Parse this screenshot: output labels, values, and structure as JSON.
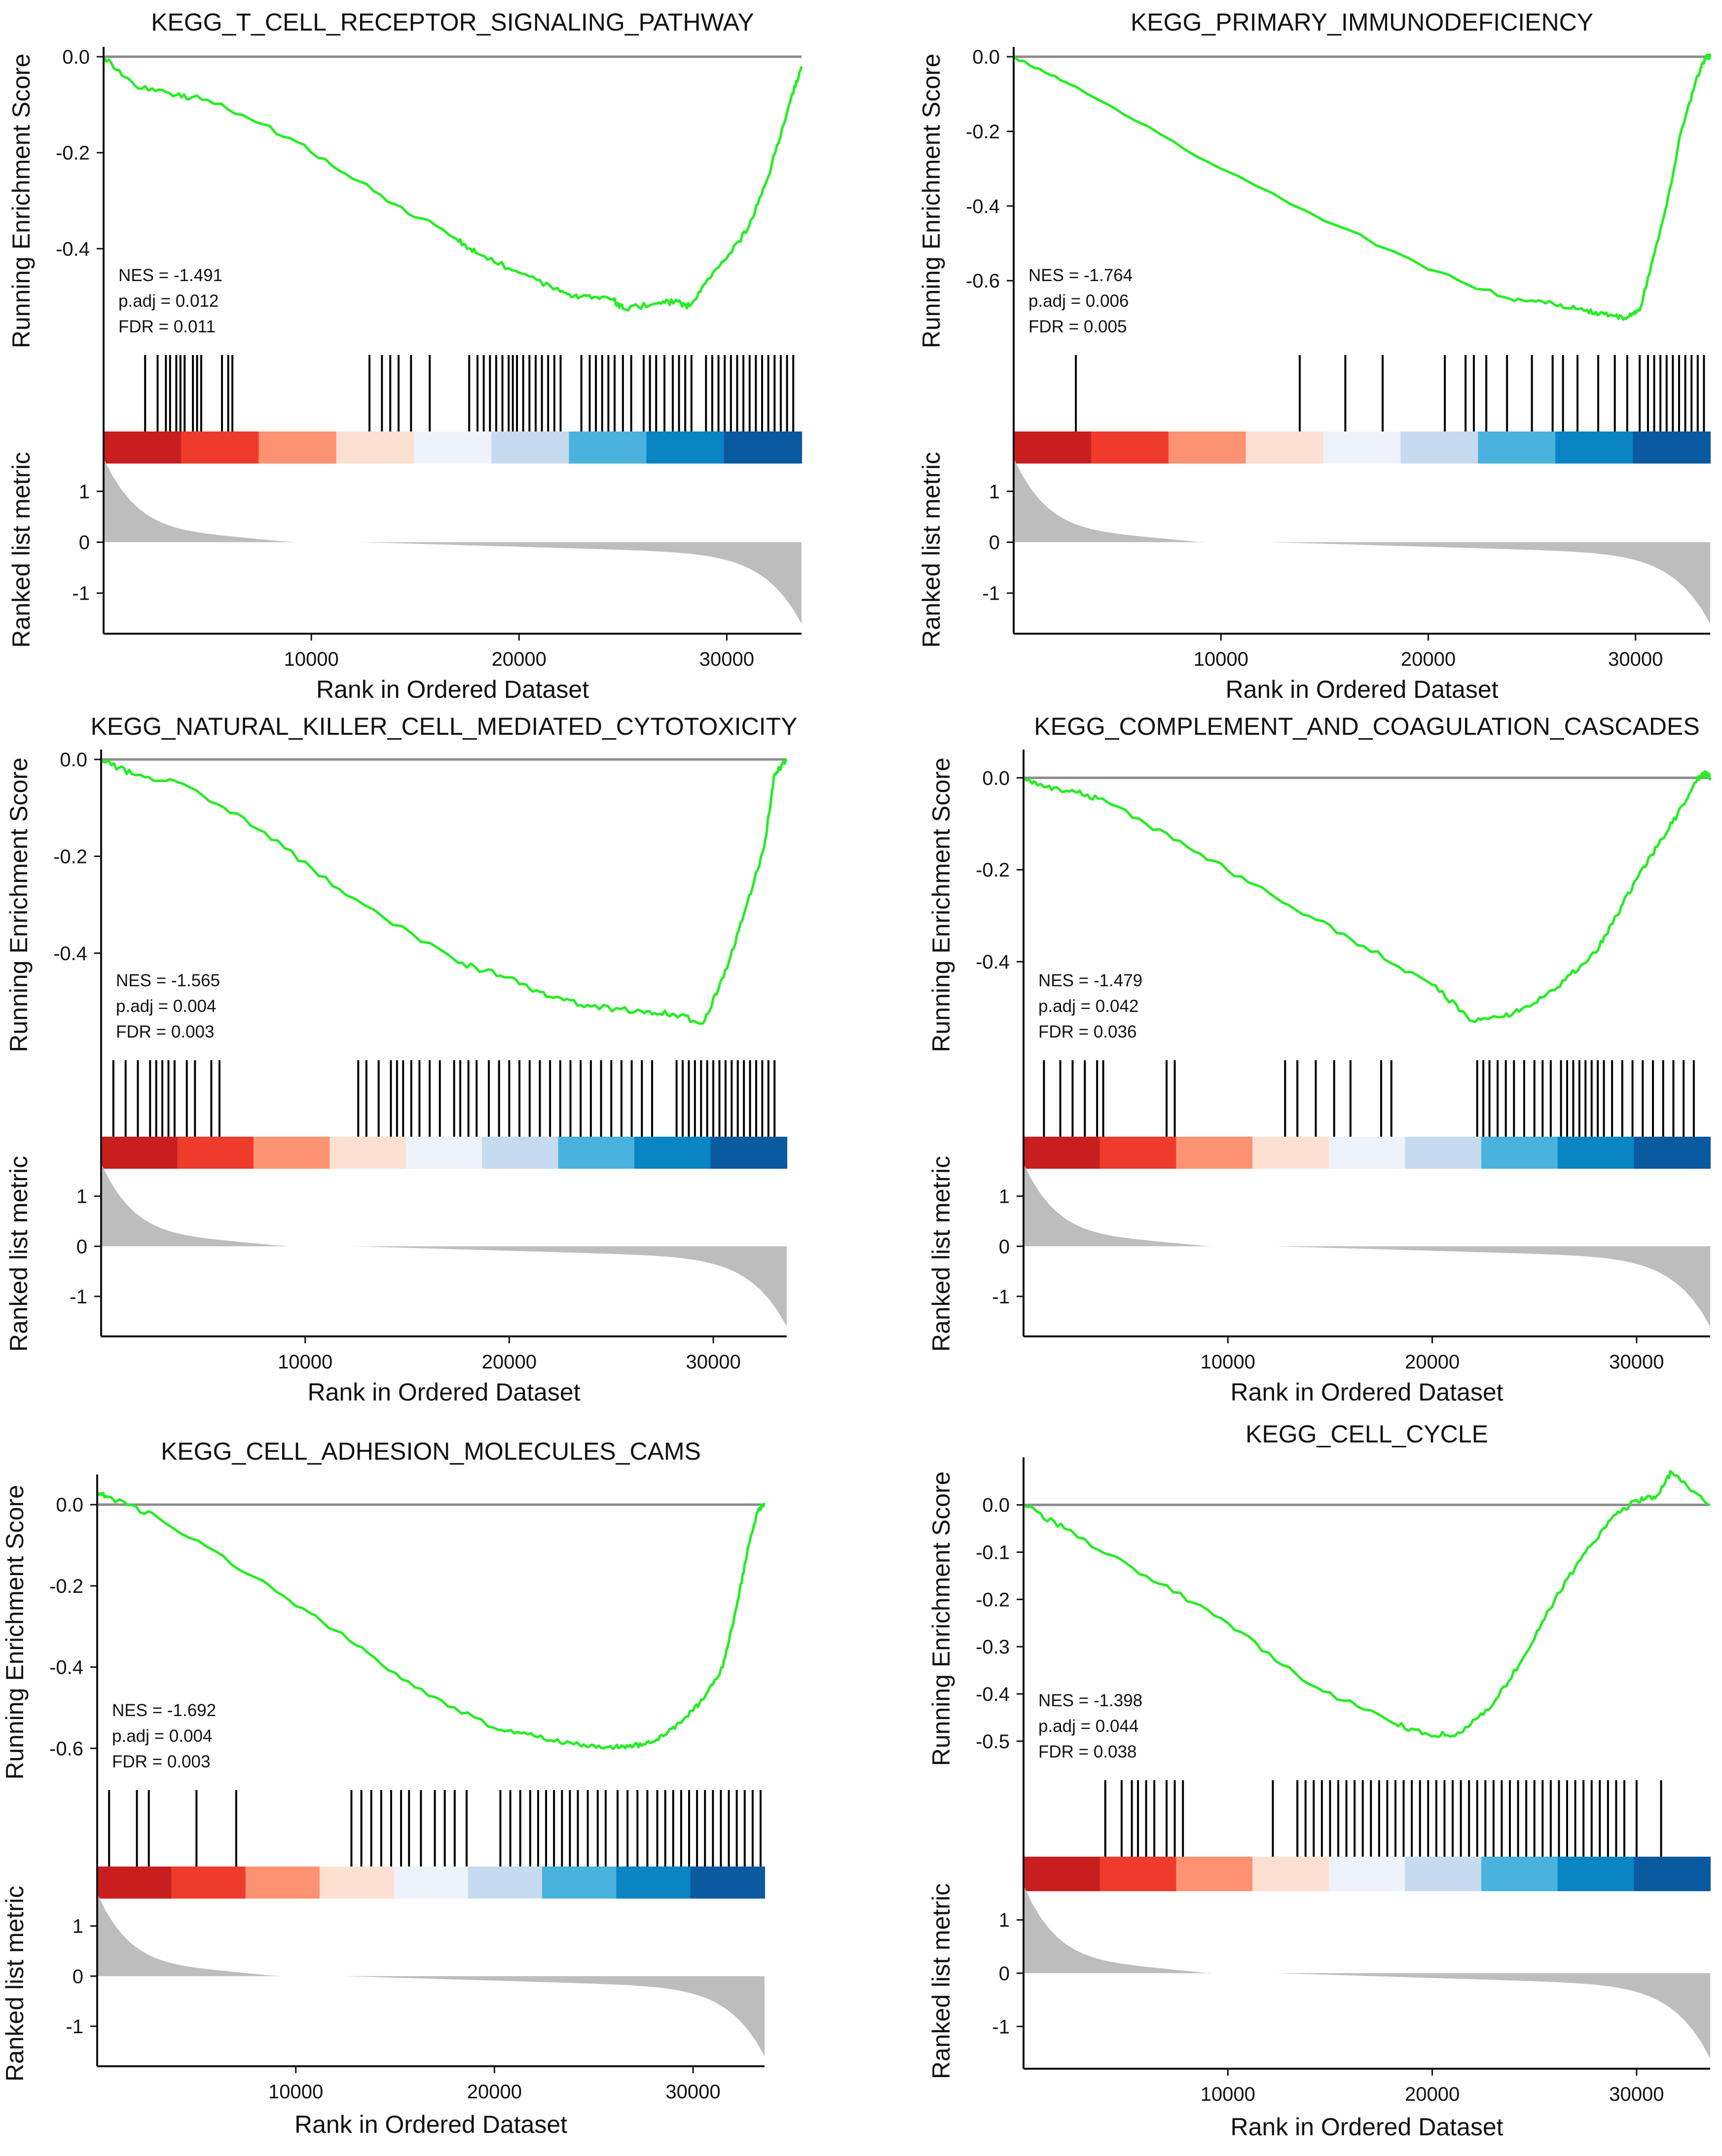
{
  "chart_data": [
    {
      "type": "gsea",
      "title": "KEGG_T_CELL_RECEPTOR_SIGNALING_PATHWAY",
      "ylabel_es": "Running Enrichment Score",
      "ylabel_metric": "Ranked list metric",
      "xlabel": "Rank in Ordered Dataset",
      "x_range": [
        0,
        33600
      ],
      "x_ticks": [
        10000,
        20000,
        30000
      ],
      "es_ylim": [
        -0.56,
        0.0
      ],
      "es_ticks": [
        0.0,
        -0.2,
        -0.4
      ],
      "metric_ylim": [
        -1.7,
        1.4
      ],
      "metric_ticks": [
        1,
        0,
        -1
      ],
      "curve": {
        "x": [
          0,
          1500,
          3500,
          5000,
          9000,
          13000,
          17000,
          18000,
          20000,
          22000,
          23000,
          24500,
          25000,
          26500,
          27500,
          28200,
          29000,
          30000,
          31000,
          32000,
          33000,
          33600
        ],
        "y": [
          0,
          -0.06,
          -0.08,
          -0.09,
          -0.17,
          -0.28,
          -0.38,
          -0.41,
          -0.45,
          -0.49,
          -0.5,
          -0.505,
          -0.525,
          -0.515,
          -0.51,
          -0.52,
          -0.47,
          -0.42,
          -0.36,
          -0.25,
          -0.1,
          -0.02
        ]
      },
      "hits": [
        2000,
        2600,
        3000,
        3200,
        3500,
        3700,
        3900,
        4300,
        4500,
        4700,
        5700,
        6000,
        6200,
        12800,
        13400,
        13800,
        14200,
        14800,
        15700,
        17600,
        18000,
        18300,
        18600,
        18900,
        19200,
        19500,
        19700,
        19900,
        20200,
        20500,
        20800,
        21100,
        21400,
        21700,
        22000,
        23000,
        23400,
        23700,
        24000,
        24300,
        24600,
        25000,
        25400,
        26000,
        26300,
        26600,
        27000,
        27400,
        27700,
        28000,
        28300,
        29000,
        29300,
        29600,
        29900,
        30200,
        30500,
        30800,
        31100,
        31400,
        31700,
        32000,
        32300,
        32600,
        32900,
        33200
      ],
      "stats": {
        "nes": "NES = -1.491",
        "padj": "p.adj = 0.012",
        "fdr": "FDR = 0.011"
      }
    },
    {
      "type": "gsea",
      "title": "KEGG_PRIMARY_IMMUNODEFICIENCY",
      "ylabel_es": "Running Enrichment Score",
      "ylabel_metric": "Ranked list metric",
      "xlabel": "Rank in Ordered Dataset",
      "x_range": [
        0,
        33600
      ],
      "x_ticks": [
        10000,
        20000,
        30000
      ],
      "es_ylim": [
        -0.72,
        0.0
      ],
      "es_ticks": [
        0.0,
        -0.2,
        -0.4,
        -0.6
      ],
      "metric_ylim": [
        -1.7,
        1.4
      ],
      "metric_ticks": [
        1,
        0,
        -1
      ],
      "curve": {
        "x": [
          0,
          3000,
          10000,
          20000,
          24000,
          26000,
          27500,
          28500,
          29500,
          30200,
          30800,
          31500,
          32200,
          33000,
          33400,
          33600
        ],
        "y": [
          0,
          -0.08,
          -0.3,
          -0.57,
          -0.65,
          -0.66,
          -0.68,
          -0.69,
          -0.7,
          -0.68,
          -0.55,
          -0.4,
          -0.2,
          -0.05,
          0.0,
          0.0
        ]
      },
      "hits": [
        3000,
        13800,
        16000,
        17800,
        20800,
        21800,
        22200,
        22800,
        23800,
        25000,
        26000,
        26500,
        27200,
        28200,
        29000,
        29600,
        30200,
        30600,
        30900,
        31200,
        31500,
        31800,
        32100,
        32400,
        32700,
        33000,
        33300
      ],
      "stats": {
        "nes": "NES = -1.764",
        "padj": "p.adj = 0.006",
        "fdr": "FDR = 0.005"
      }
    },
    {
      "type": "gsea",
      "title": "KEGG_NATURAL_KILLER_CELL_MEDIATED_CYTOTOXICITY",
      "ylabel_es": "Running Enrichment Score",
      "ylabel_metric": "Ranked list metric",
      "xlabel": "Rank in Ordered Dataset",
      "x_range": [
        0,
        33600
      ],
      "x_ticks": [
        10000,
        20000,
        30000
      ],
      "es_ylim": [
        -0.56,
        0.0
      ],
      "es_ticks": [
        0.0,
        -0.2,
        -0.4
      ],
      "metric_ylim": [
        -1.7,
        1.4
      ],
      "metric_ticks": [
        1,
        0,
        -1
      ],
      "curve": {
        "x": [
          0,
          1500,
          4000,
          8000,
          12000,
          17500,
          20000,
          22000,
          24000,
          26500,
          28000,
          29500,
          30500,
          31500,
          32500,
          33000,
          33600
        ],
        "y": [
          0,
          -0.03,
          -0.05,
          -0.15,
          -0.28,
          -0.42,
          -0.45,
          -0.49,
          -0.51,
          -0.52,
          -0.525,
          -0.545,
          -0.45,
          -0.32,
          -0.18,
          -0.03,
          0.0
        ]
      },
      "hits": [
        600,
        1200,
        1800,
        2400,
        2700,
        3000,
        3300,
        3600,
        4200,
        4600,
        5400,
        5800,
        12600,
        13000,
        13600,
        14200,
        14500,
        14800,
        15200,
        15600,
        16100,
        16600,
        17300,
        17600,
        18000,
        18400,
        19000,
        19500,
        20000,
        20500,
        21000,
        21500,
        22000,
        22500,
        23000,
        23500,
        24000,
        24500,
        25000,
        25500,
        26000,
        26500,
        27000,
        28200,
        28500,
        28800,
        29100,
        29400,
        29700,
        30000,
        30300,
        30600,
        30900,
        31200,
        31500,
        31800,
        32100,
        32400,
        32700,
        33000
      ],
      "stats": {
        "nes": "NES = -1.565",
        "padj": "p.adj = 0.004",
        "fdr": "FDR = 0.003"
      }
    },
    {
      "type": "gsea",
      "title": "KEGG_COMPLEMENT_AND_COAGULATION_CASCADES",
      "ylabel_es": "Running Enrichment Score",
      "ylabel_metric": "Ranked list metric",
      "xlabel": "Rank in Ordered Dataset",
      "x_range": [
        0,
        33600
      ],
      "x_ticks": [
        10000,
        20000,
        30000
      ],
      "es_ylim": [
        -0.55,
        0.04
      ],
      "es_ticks": [
        0.0,
        -0.2,
        -0.4
      ],
      "metric_ylim": [
        -1.7,
        1.4
      ],
      "metric_ticks": [
        1,
        0,
        -1
      ],
      "curve": {
        "x": [
          0,
          1000,
          2500,
          4000,
          8000,
          12000,
          16000,
          20000,
          22000,
          23500,
          25000,
          26500,
          28000,
          29000,
          30000,
          31000,
          32000,
          33000,
          33400,
          33600
        ],
        "y": [
          0,
          -0.02,
          -0.03,
          -0.05,
          -0.15,
          -0.25,
          -0.35,
          -0.45,
          -0.53,
          -0.52,
          -0.49,
          -0.44,
          -0.38,
          -0.3,
          -0.22,
          -0.15,
          -0.08,
          0.0,
          0.01,
          0.0
        ]
      },
      "hits": [
        1000,
        1800,
        2400,
        3000,
        3600,
        3900,
        7000,
        7400,
        12800,
        13400,
        14300,
        15200,
        16000,
        17500,
        18000,
        22200,
        22500,
        22800,
        23200,
        23600,
        24000,
        24500,
        25000,
        25400,
        25800,
        26300,
        26600,
        26900,
        27200,
        27500,
        27800,
        28100,
        28400,
        28800,
        29300,
        29800,
        30300,
        30800,
        31300,
        31800,
        32300,
        32800
      ],
      "stats": {
        "nes": "NES = -1.479",
        "padj": "p.adj = 0.042",
        "fdr": "FDR = 0.036"
      }
    },
    {
      "type": "gsea",
      "title": "KEGG_CELL_ADHESION_MOLECULES_CAMS",
      "ylabel_es": "Running Enrichment Score",
      "ylabel_metric": "Ranked list metric",
      "xlabel": "Rank in Ordered Dataset",
      "x_range": [
        0,
        33600
      ],
      "x_ticks": [
        10000,
        20000,
        30000
      ],
      "es_ylim": [
        -0.63,
        0.05
      ],
      "es_ticks": [
        0.0,
        -0.2,
        -0.4,
        -0.6
      ],
      "metric_ylim": [
        -1.7,
        1.4
      ],
      "metric_ticks": [
        1,
        0,
        -1
      ],
      "curve": {
        "x": [
          0,
          500,
          3000,
          8000,
          12000,
          16000,
          20000,
          22000,
          24000,
          25500,
          26500,
          27500,
          28500,
          29500,
          30500,
          31500,
          32200,
          32800,
          33300,
          33600
        ],
        "y": [
          0.03,
          0.02,
          -0.03,
          -0.18,
          -0.31,
          -0.45,
          -0.55,
          -0.57,
          -0.59,
          -0.6,
          -0.595,
          -0.59,
          -0.57,
          -0.53,
          -0.48,
          -0.4,
          -0.25,
          -0.1,
          -0.01,
          0.0
        ]
      },
      "hits": [
        600,
        2000,
        2600,
        5000,
        7000,
        12800,
        13300,
        13800,
        14300,
        14800,
        15300,
        15700,
        16300,
        17000,
        17500,
        18000,
        18600,
        20300,
        20800,
        21300,
        21800,
        22200,
        22600,
        23000,
        23400,
        23800,
        24200,
        24700,
        25200,
        25600,
        26200,
        26700,
        27200,
        27700,
        28200,
        28600,
        29000,
        29400,
        29800,
        30200,
        30600,
        31000,
        31400,
        31800,
        32200,
        32600,
        33000,
        33400
      ],
      "stats": {
        "nes": "NES = -1.692",
        "padj": "p.adj = 0.004",
        "fdr": "FDR = 0.003"
      }
    },
    {
      "type": "gsea",
      "title": "KEGG_CELL_CYCLE",
      "ylabel_es": "Running Enrichment Score",
      "ylabel_metric": "Ranked list metric",
      "xlabel": "Rank in Ordered Dataset",
      "x_range": [
        0,
        33600
      ],
      "x_ticks": [
        10000,
        20000,
        30000
      ],
      "es_ylim": [
        -0.52,
        0.08
      ],
      "es_ticks": [
        0.0,
        -0.1,
        -0.2,
        -0.3,
        -0.4,
        -0.5
      ],
      "metric_ylim": [
        -1.7,
        1.4
      ],
      "metric_ticks": [
        1,
        0,
        -1
      ],
      "curve": {
        "x": [
          0,
          2000,
          6000,
          10000,
          14000,
          18000,
          20000,
          21500,
          23000,
          24500,
          26000,
          27500,
          29000,
          30000,
          31000,
          31700,
          33600
        ],
        "y": [
          0,
          -0.05,
          -0.15,
          -0.25,
          -0.38,
          -0.46,
          -0.49,
          -0.48,
          -0.42,
          -0.32,
          -0.2,
          -0.1,
          -0.02,
          0.01,
          0.02,
          0.07,
          0.0
        ]
      },
      "hits": [
        4000,
        4800,
        5300,
        5600,
        6000,
        6400,
        7000,
        7400,
        7800,
        12200,
        13400,
        13800,
        14200,
        14600,
        15000,
        15400,
        15800,
        16200,
        16600,
        17000,
        17400,
        17800,
        18200,
        18600,
        19000,
        19400,
        19800,
        20200,
        20600,
        21000,
        21400,
        21800,
        22200,
        22600,
        23000,
        23400,
        23800,
        24200,
        24600,
        25000,
        25400,
        25800,
        26200,
        26600,
        27000,
        27400,
        27800,
        28200,
        28600,
        29000,
        29400,
        30000,
        31200
      ],
      "stats": {
        "nes": "NES = -1.398",
        "padj": "p.adj = 0.044",
        "fdr": "FDR = 0.038"
      }
    }
  ],
  "colors": {
    "curve": "#22ee22",
    "baseline": "#8c8c8c",
    "metric_fill": "#bdbdbd",
    "hit_line": "#000000",
    "gradient": [
      "#c81e1e",
      "#ef3b2c",
      "#fc9272",
      "#fde0d2",
      "#eef3fb",
      "#c6dbef",
      "#4ab3dd",
      "#0b84c3",
      "#0a5aa0"
    ]
  }
}
